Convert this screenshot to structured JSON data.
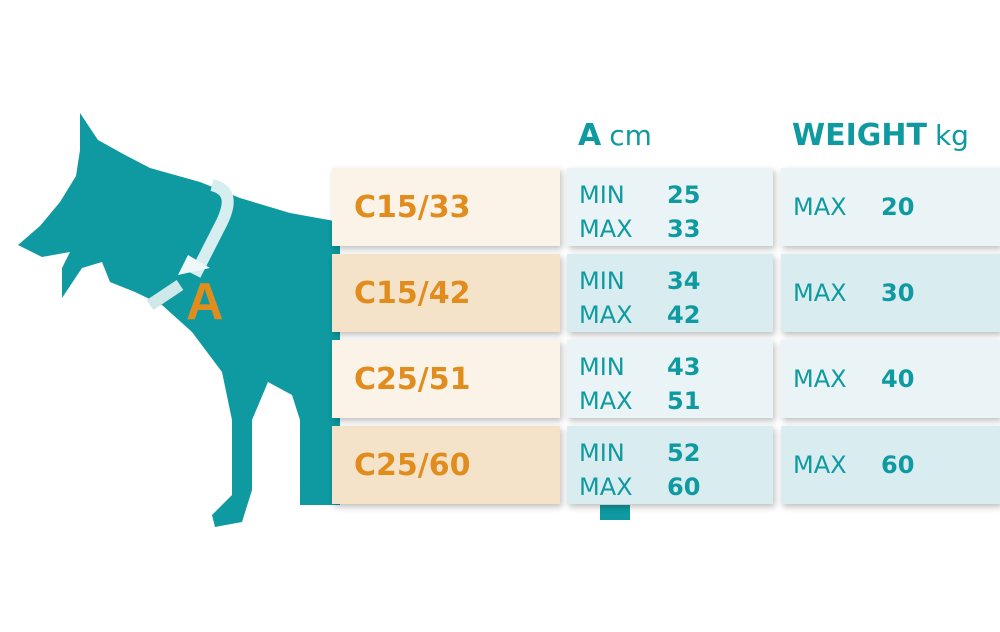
{
  "diagram": {
    "measure_label": "A"
  },
  "header": {
    "a_label": "A",
    "a_unit": "cm",
    "weight_label": "WEIGHT",
    "weight_unit": "kg"
  },
  "colors": {
    "teal": "#0e9aa0",
    "orange": "#e08d1e"
  },
  "rows": [
    {
      "size": "C15/33",
      "min_label": "MIN",
      "min": "25",
      "max_label": "MAX",
      "max": "33",
      "weight_label": "MAX",
      "weight": "20"
    },
    {
      "size": "C15/42",
      "min_label": "MIN",
      "min": "34",
      "max_label": "MAX",
      "max": "42",
      "weight_label": "MAX",
      "weight": "30"
    },
    {
      "size": "C25/51",
      "min_label": "MIN",
      "min": "43",
      "max_label": "MAX",
      "max": "51",
      "weight_label": "MAX",
      "weight": "40"
    },
    {
      "size": "C25/60",
      "min_label": "MIN",
      "min": "52",
      "max_label": "MAX",
      "max": "60",
      "weight_label": "MAX",
      "weight": "60"
    }
  ]
}
